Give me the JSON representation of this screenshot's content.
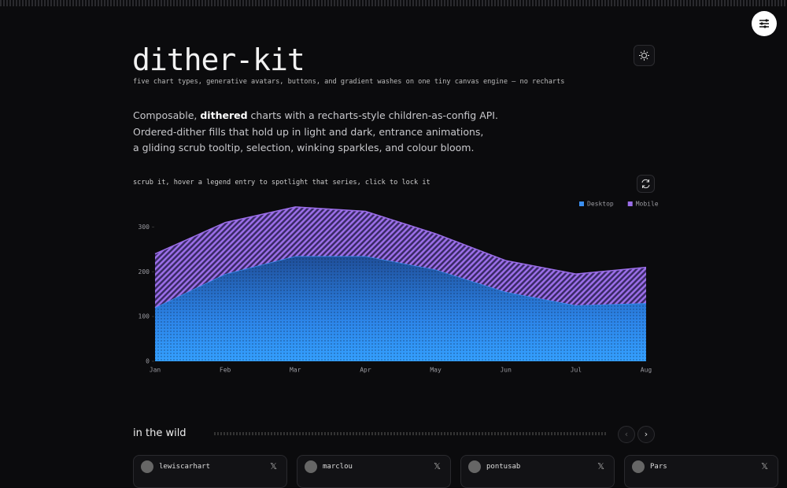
{
  "header": {
    "title": "dither-kit",
    "subtitle": "five chart types, generative avatars, buttons, and gradient washes on one tiny canvas engine — no recharts"
  },
  "intro": {
    "line1_start": "Composable, ",
    "line1_bold": "dithered",
    "line1_end": " charts with a recharts-style children-as-config API.",
    "line2": "Ordered-dither fills that hold up in light and dark, entrance animations,",
    "line3": "a gliding scrub tooltip, selection, winking sparkles, and colour bloom."
  },
  "caption": "scrub it, hover a legend entry to spotlight that series, click to lock it",
  "chart_data": {
    "type": "stacked-area",
    "categories": [
      "Jan",
      "Feb",
      "Mar",
      "Apr",
      "May",
      "Jun",
      "Jul",
      "Aug"
    ],
    "series": [
      {
        "name": "Desktop",
        "color": "#3b8ff0",
        "values": [
          120,
          195,
          235,
          235,
          205,
          155,
          125,
          130
        ]
      },
      {
        "name": "Mobile",
        "color": "#9b6ee8",
        "values": [
          120,
          115,
          110,
          100,
          80,
          70,
          70,
          80
        ]
      }
    ],
    "ylim": [
      0,
      350
    ],
    "yticks": [
      0,
      100,
      200,
      300
    ],
    "legend": "top-right"
  },
  "wild": {
    "title": "in the wild",
    "cards": [
      "lewiscarhart",
      "marclou",
      "pontusab",
      "Pars"
    ]
  }
}
